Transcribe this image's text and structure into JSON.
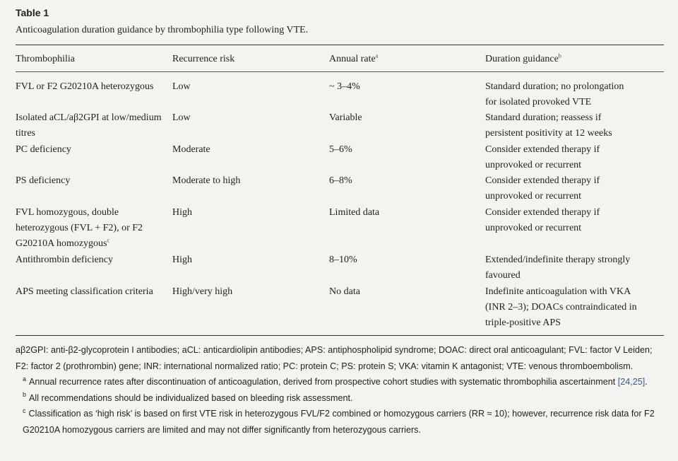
{
  "table": {
    "label": "Table 1",
    "caption": "Anticoagulation duration guidance by thrombophilia type following VTE.",
    "headers": {
      "thrombophilia": "Thrombophilia",
      "risk": "Recurrence risk",
      "rate": "Annual rate",
      "rate_mark": "a",
      "guidance": "Duration guidance",
      "guidance_mark": "b"
    },
    "rows": [
      {
        "thrombophilia": [
          "FVL or F2 G20210A heterozygous"
        ],
        "risk": "Low",
        "rate": "~ 3–4%",
        "guidance": [
          "Standard duration; no prolongation",
          "for isolated provoked VTE"
        ]
      },
      {
        "thrombophilia": [
          "Isolated aCL/aβ2GPI at low/medium",
          "titres"
        ],
        "risk": "Low",
        "rate": "Variable",
        "guidance": [
          "Standard duration; reassess if",
          "persistent positivity at 12 weeks"
        ]
      },
      {
        "thrombophilia": [
          "PC deficiency"
        ],
        "risk": "Moderate",
        "rate": "5–6%",
        "guidance": [
          "Consider extended therapy if",
          "unprovoked or recurrent"
        ]
      },
      {
        "thrombophilia": [
          "PS deficiency"
        ],
        "risk": "Moderate to high",
        "rate": "6–8%",
        "guidance": [
          "Consider extended therapy if",
          "unprovoked or recurrent"
        ]
      },
      {
        "thrombophilia": [
          "FVL homozygous, double",
          "heterozygous (FVL + F2), or F2",
          "G20210A homozygous"
        ],
        "thrombophilia_mark": "c",
        "risk": "High",
        "rate": "Limited data",
        "guidance": [
          "Consider extended therapy if",
          "unprovoked or recurrent"
        ]
      },
      {
        "thrombophilia": [
          "Antithrombin deficiency"
        ],
        "risk": "High",
        "rate": "8–10%",
        "guidance": [
          "Extended/indefinite therapy strongly",
          "favoured"
        ]
      },
      {
        "thrombophilia": [
          "APS meeting classification criteria"
        ],
        "risk": "High/very high",
        "rate": "No data",
        "guidance": [
          "Indefinite anticoagulation with VKA",
          "(INR 2–3); DOACs contraindicated in",
          "triple-positive APS"
        ]
      }
    ]
  },
  "footnotes": {
    "abbreviations": "aβ2GPI: anti-β2-glycoprotein I antibodies; aCL: anticardiolipin antibodies; APS: antiphospholipid syndrome; DOAC: direct oral anticoagulant; FVL: factor V Leiden; F2: factor 2 (prothrombin) gene; INR: international normalized ratio; PC: protein C; PS: protein S; VKA: vitamin K antagonist; VTE: venous thromboembolism.",
    "a_mark": "a",
    "a_text": "Annual recurrence rates after discontinuation of anticoagulation, derived from prospective cohort studies with systematic thrombophilia ascertainment ",
    "a_ref": "[24,25]",
    "a_end": ".",
    "b_mark": "b",
    "b_text": "All recommendations should be individualized based on bleeding risk assessment.",
    "c_mark": "c",
    "c_text": "Classification as ‘high risk’ is based on first VTE risk in heterozygous FVL/F2 combined or homozygous carriers (RR ≈ 10); however, recurrence risk data for F2 G20210A homozygous carriers are limited and may not differ significantly from heterozygous carriers."
  },
  "colors": {
    "background": "#f4f3ef",
    "text": "#222222",
    "reference_link": "#2a5aa8"
  }
}
